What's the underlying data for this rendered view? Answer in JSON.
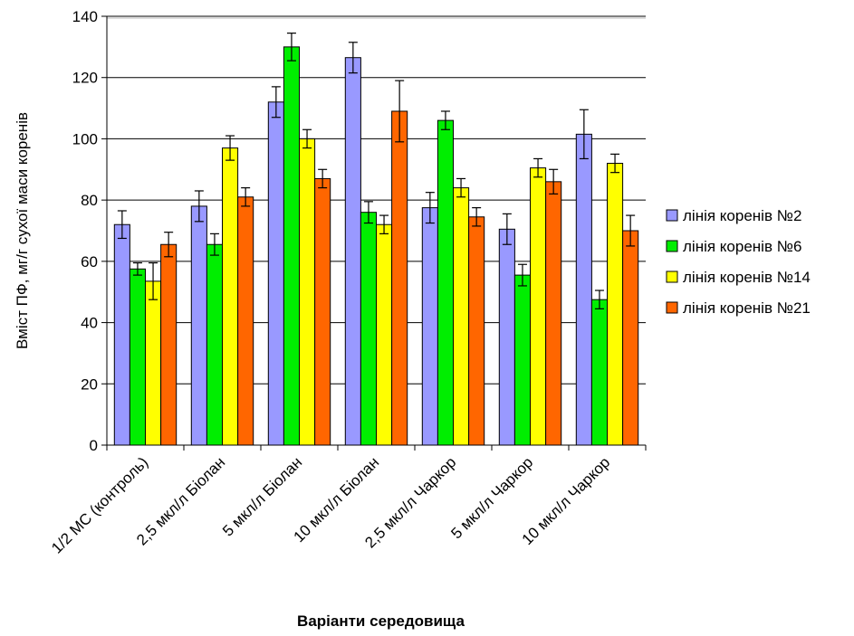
{
  "chart_data": {
    "type": "bar",
    "xlabel": "Варіанти середовища",
    "ylabel": "Вміст ПФ, мг/г сухої маси коренів",
    "ylim": [
      0,
      140
    ],
    "yticks": [
      0,
      20,
      40,
      60,
      80,
      100,
      120,
      140
    ],
    "grid": true,
    "legend_position": "right",
    "categories": [
      "1/2 МС (контроль)",
      "2,5 мкл/л Біолан",
      "5 мкл/л Біолан",
      "10  мкл/л Біолан",
      "2,5  мкл/л Чаркор",
      "5 мкл/л Чаркор",
      "10 мкл/л Чаркор"
    ],
    "series": [
      {
        "name": "лінія коренів №2",
        "color": "#9999ff",
        "values": [
          72,
          78,
          112,
          126.5,
          77.5,
          70.5,
          101.5
        ],
        "errors": [
          4.5,
          5,
          5,
          5,
          5,
          5,
          8
        ]
      },
      {
        "name": "лінія коренів №6",
        "color": "#00ee00",
        "values": [
          57.5,
          65.5,
          130,
          76,
          106,
          55.5,
          47.5
        ],
        "errors": [
          2,
          3.5,
          4.5,
          3.5,
          3,
          3.5,
          3
        ]
      },
      {
        "name": "лінія коренів №14",
        "color": "#ffff00",
        "values": [
          53.5,
          97,
          100,
          72,
          84,
          90.5,
          92
        ],
        "errors": [
          6,
          4,
          3,
          3,
          3,
          3,
          3
        ]
      },
      {
        "name": "лінія коренів №21",
        "color": "#ff6600",
        "values": [
          65.5,
          81,
          87,
          109,
          74.5,
          86,
          70
        ],
        "errors": [
          4,
          3,
          3,
          10,
          3,
          4,
          5
        ]
      }
    ]
  }
}
